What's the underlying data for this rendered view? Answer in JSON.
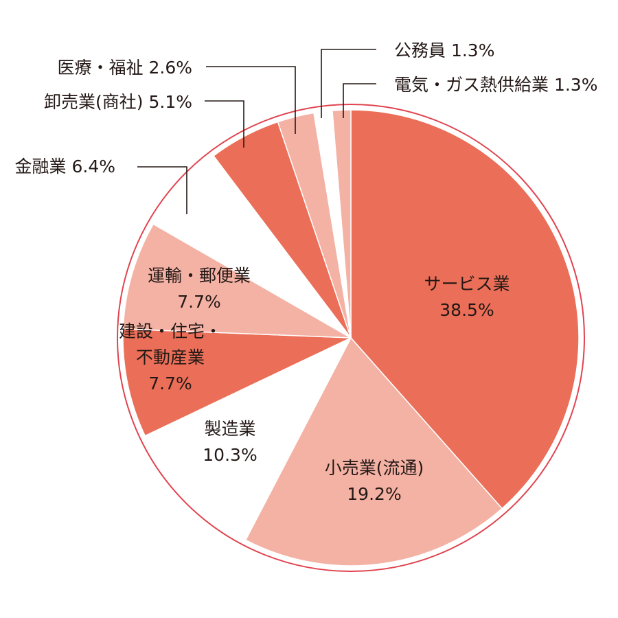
{
  "chart_data": {
    "type": "pie",
    "title": "",
    "start_angle_deg": 0,
    "direction": "clockwise",
    "slices": [
      {
        "label": "サービス業",
        "value": 38.5,
        "value_text": "38.5%",
        "color": "#EB6F58",
        "label_mode": "inside",
        "label_lines": [
          "サービス業"
        ]
      },
      {
        "label": "小売業(流通)",
        "value": 19.2,
        "value_text": "19.2%",
        "color": "#F4B2A5",
        "label_mode": "inside",
        "label_lines": [
          "小売業(流通)"
        ]
      },
      {
        "label": "製造業",
        "value": 10.3,
        "value_text": "10.3%",
        "color": "#FFFFFF",
        "label_mode": "inside",
        "label_lines": [
          "製造業"
        ]
      },
      {
        "label": "建設・住宅・不動産業",
        "value": 7.7,
        "value_text": "7.7%",
        "color": "#EB6F58",
        "label_mode": "inside",
        "label_lines": [
          "建設・住宅・",
          "不動産業"
        ]
      },
      {
        "label": "運輸・郵便業",
        "value": 7.7,
        "value_text": "7.7%",
        "color": "#F4B2A5",
        "label_mode": "inside",
        "label_lines": [
          "運輸・郵便業"
        ]
      },
      {
        "label": "金融業",
        "value": 6.4,
        "value_text": "6.4%",
        "color": "#FFFFFF",
        "label_mode": "outside",
        "label_lines": [
          "金融業 6.4%"
        ]
      },
      {
        "label": "卸売業(商社)",
        "value": 5.1,
        "value_text": "5.1%",
        "color": "#EB6F58",
        "label_mode": "outside",
        "label_lines": [
          "卸売業(商社) 5.1%"
        ]
      },
      {
        "label": "医療・福祉",
        "value": 2.6,
        "value_text": "2.6%",
        "color": "#F4B2A5",
        "label_mode": "outside",
        "label_lines": [
          "医療・福祉 2.6%"
        ]
      },
      {
        "label": "公務員",
        "value": 1.3,
        "value_text": "1.3%",
        "color": "#FFFFFF",
        "label_mode": "outside",
        "label_lines": [
          "公務員 1.3%"
        ]
      },
      {
        "label": "電気・ガス熱供給業",
        "value": 1.3,
        "value_text": "1.3%",
        "color": "#F4B2A5",
        "label_mode": "outside",
        "label_lines": [
          "電気・ガス熱供給業 1.3%"
        ]
      }
    ],
    "outline_color": "#E0444F",
    "legend": "none"
  }
}
